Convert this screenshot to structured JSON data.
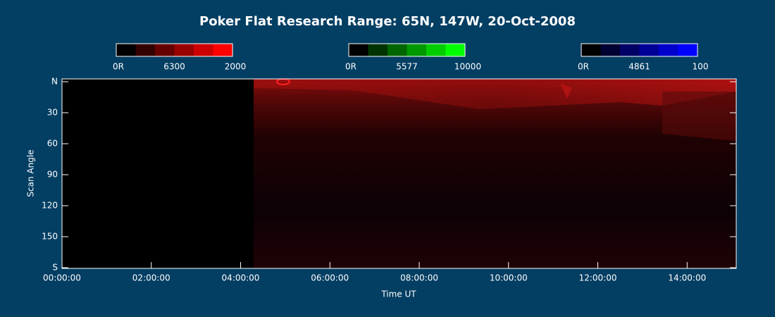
{
  "chart_data": {
    "type": "keogram",
    "title": "Poker Flat Research Range: 65N, 147W, 20-Oct-2008",
    "xlabel": "Time UT",
    "ylabel": "Scan Angle",
    "xlim": [
      0,
      15.1
    ],
    "xticks": [
      {
        "value": 0,
        "label": "00:00:00"
      },
      {
        "value": 2,
        "label": "02:00:00"
      },
      {
        "value": 4,
        "label": "04:00:00"
      },
      {
        "value": 6,
        "label": "06:00:00"
      },
      {
        "value": 8,
        "label": "08:00:00"
      },
      {
        "value": 10,
        "label": "10:00:00"
      },
      {
        "value": 12,
        "label": "12:00:00"
      },
      {
        "value": 14,
        "label": "14:00:00"
      }
    ],
    "ylim": [
      0,
      180
    ],
    "yticks": [
      {
        "value": 0,
        "label": "N"
      },
      30,
      60,
      90,
      120,
      150,
      {
        "value": 180,
        "label": "S"
      }
    ],
    "colorbars": [
      {
        "min_label": "0R",
        "wavelength": "6300",
        "max": 2000,
        "color": "#ff0000"
      },
      {
        "min_label": "0R",
        "wavelength": "5577",
        "max": 10000,
        "color": "#00ff00"
      },
      {
        "min_label": "0R",
        "wavelength": "4861",
        "max": 100,
        "color": "#0000ff"
      }
    ]
  }
}
